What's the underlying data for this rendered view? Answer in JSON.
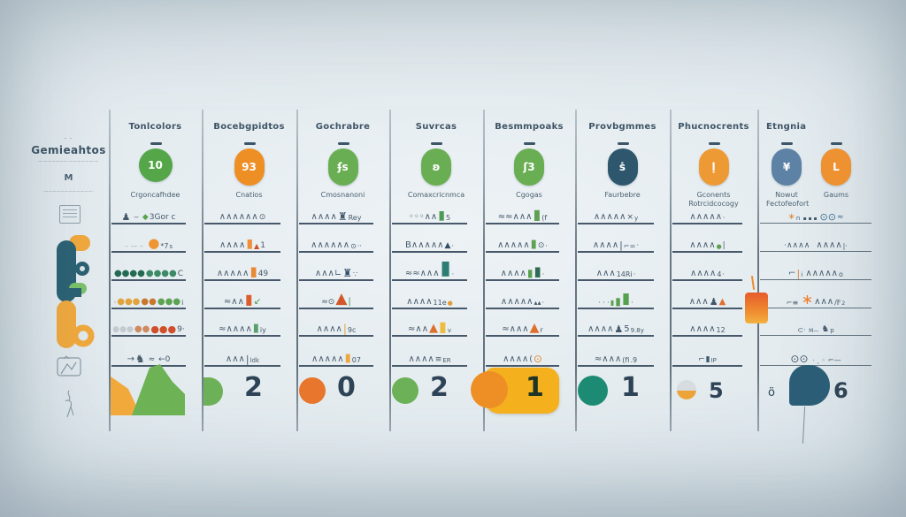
{
  "palette": {
    "slate_text": "#3e5466",
    "row_line": "#46586a",
    "divider": "#8b99a4",
    "green": "#54a648",
    "light_green": "#6cb157",
    "orange": "#ee8f26",
    "deep_orange": "#e8762c",
    "yellow_card": "#f5b01e",
    "navy": "#2e576e",
    "blue_gray": "#5d82a5",
    "teal": "#1d8a73",
    "blob_navy": "#2b5d77",
    "number": "#2e4456"
  },
  "intro": {
    "kicker": "– –",
    "title": "Gemieahtos",
    "caption": "—·——————·——————·—",
    "m_label": "M",
    "m_caption": "·————————————·"
  },
  "columns": [
    {
      "header": "Tonlcolors",
      "icon": {
        "glyph": "10",
        "bg": "#54a648",
        "shape": "circle"
      },
      "subtitle": "Crgoncafhdee",
      "rows": [
        [
          {
            "t": "♟",
            "s": 11
          },
          {
            "t": " ‒ ",
            "s": 9
          },
          {
            "t": "◆",
            "c": "#5aa24b",
            "s": 9
          },
          {
            "t": "3Gor c",
            "s": 9
          }
        ],
        [
          {
            "t": "– — –",
            "c": "#9aa8b2",
            "s": 8
          },
          {
            "t": " "
          },
          {
            "t": "●",
            "c": "#ee9634",
            "s": 15
          },
          {
            "t": "*7",
            "s": 8
          },
          {
            "t": "s",
            "s": 7
          }
        ],
        [
          {
            "t": "●●●●",
            "c": "#226b52",
            "s": 10
          },
          {
            "t": "●●●●",
            "c": "#3c8a66",
            "s": 10
          },
          {
            "t": "C",
            "s": 9
          }
        ],
        [
          {
            "t": "·",
            "s": 8
          },
          {
            "t": "●●●",
            "c": "#e2a33a",
            "s": 10
          },
          {
            "t": "●●",
            "c": "#c8772f",
            "s": 10
          },
          {
            "t": "●●●",
            "c": "#5ca352",
            "s": 10
          },
          {
            "t": "i",
            "s": 8
          }
        ],
        [
          {
            "t": "●●●",
            "c": "#c3cad0",
            "s": 9
          },
          {
            "t": "●●",
            "c": "#cf8a60",
            "s": 10
          },
          {
            "t": "●●●",
            "c": "#d24e2a",
            "s": 11
          },
          {
            "t": "9·",
            "s": 9
          }
        ],
        [
          {
            "t": "→",
            "s": 10
          },
          {
            "t": "♞",
            "s": 12
          },
          {
            "t": " ≈ ",
            "s": 9
          },
          {
            "t": "←0",
            "s": 9
          }
        ]
      ],
      "bottom": {
        "type": "area",
        "left_color": "#f2a93c",
        "right_color": "#6db356"
      }
    },
    {
      "header": "Bocebgpidtos",
      "icon": {
        "glyph": "93",
        "bg": "#ee8f26"
      },
      "subtitle": "Cnatios",
      "rows": [
        [
          {
            "t": "∧∧∧∧∧∧",
            "s": 10
          },
          {
            "t": "⊙",
            "s": 9
          }
        ],
        [
          {
            "t": "∧∧∧∧",
            "s": 10
          },
          {
            "t": "▮",
            "c": "#ee8f3a",
            "s": 14
          },
          {
            "t": "▲",
            "c": "#cf4f28",
            "s": 8
          },
          {
            "t": "1",
            "s": 9
          }
        ],
        [
          {
            "t": "∧∧∧∧∧",
            "s": 10
          },
          {
            "t": "▮",
            "c": "#e98a33",
            "s": 15
          },
          {
            "t": "49",
            "s": 9
          }
        ],
        [
          {
            "t": "≈∧∧",
            "s": 10
          },
          {
            "t": "▮",
            "c": "#da5f2d",
            "s": 16
          },
          {
            "t": "↙",
            "c": "#4c8f50",
            "s": 10
          }
        ],
        [
          {
            "t": "≈∧∧∧∧",
            "s": 10
          },
          {
            "t": "▮",
            "c": "#58a06b",
            "s": 13
          },
          {
            "t": "iy",
            "s": 8
          }
        ],
        [
          {
            "t": "∧∧∧",
            "s": 10
          },
          {
            "t": "|",
            "s": 11
          },
          {
            "t": "ldk",
            "s": 7
          }
        ]
      ],
      "bottom": {
        "type": "bubble",
        "shape": "half",
        "color": "#6cb157",
        "num": "2"
      }
    },
    {
      "header": "Gochrabre",
      "icon": {
        "glyph": "ʄs",
        "bg": "#6aae54"
      },
      "subtitle": "Cmosnanoni",
      "rows": [
        [
          {
            "t": "∧∧∧∧",
            "s": 10
          },
          {
            "t": "♜",
            "s": 12
          },
          {
            "t": "Rey",
            "s": 8
          }
        ],
        [
          {
            "t": "∧∧∧∧∧∧",
            "s": 10
          },
          {
            "t": "⊙",
            "s": 8
          },
          {
            "t": "··",
            "s": 8
          }
        ],
        [
          {
            "t": "∧∧∧∟",
            "s": 10
          },
          {
            "t": "♜",
            "c": "#35506b",
            "s": 12
          },
          {
            "t": "∵",
            "s": 8
          }
        ],
        [
          {
            "t": "≈⊙",
            "s": 9
          },
          {
            "t": "▲",
            "c": "#d2572b",
            "s": 17
          },
          {
            "t": "|",
            "c": "#4c8f50",
            "s": 10
          }
        ],
        [
          {
            "t": "∧∧∧∧",
            "s": 10
          },
          {
            "t": "|",
            "c": "#e0a23c",
            "s": 12
          },
          {
            "t": "9c",
            "s": 8
          }
        ],
        [
          {
            "t": "∧∧∧∧∧",
            "s": 10
          },
          {
            "t": "▮",
            "c": "#eda73f",
            "s": 13
          },
          {
            "t": "07",
            "s": 8
          }
        ]
      ],
      "bottom": {
        "type": "bubble",
        "shape": "circle",
        "color": "#e8762c",
        "num": "0"
      }
    },
    {
      "header": "Suvrcas",
      "icon": {
        "glyph": "ʚ",
        "bg": "#6aae54"
      },
      "subtitle": "Comaxcricnmca",
      "rows": [
        [
          {
            "t": "◦◦◦∧∧",
            "s": 10
          },
          {
            "t": "▮",
            "c": "#4c9a55",
            "s": 14
          },
          {
            "t": "5",
            "s": 8
          }
        ],
        [
          {
            "t": "B∧∧∧∧∧",
            "s": 10
          },
          {
            "t": "▲",
            "c": "#2f4f63",
            "s": 9
          },
          {
            "t": "·",
            "s": 8
          }
        ],
        [
          {
            "t": "≈≈∧∧∧",
            "s": 10
          },
          {
            "t": "▮",
            "c": "#2e7d74",
            "s": 22
          },
          {
            "t": "·",
            "s": 8
          }
        ],
        [
          {
            "t": "∧∧∧∧",
            "s": 10
          },
          {
            "t": "11e",
            "s": 8
          },
          {
            "t": "●",
            "c": "#e39b3a",
            "s": 7
          }
        ],
        [
          {
            "t": "≈∧∧",
            "s": 10
          },
          {
            "t": "▲",
            "c": "#dd6f2c",
            "s": 13
          },
          {
            "t": "▮",
            "c": "#eebc3f",
            "s": 16
          },
          {
            "t": "v",
            "s": 7
          }
        ],
        [
          {
            "t": "∧∧∧∧",
            "s": 10
          },
          {
            "t": "≡",
            "s": 9
          },
          {
            "t": "ER",
            "s": 7
          }
        ]
      ],
      "bottom": {
        "type": "bubble",
        "shape": "circle",
        "color": "#6cb157",
        "num": "2"
      }
    },
    {
      "header": "Besmmpoaks",
      "icon": {
        "glyph": "ʃ3",
        "bg": "#6aae54"
      },
      "subtitle": "Cgogas",
      "rows": [
        [
          {
            "t": "≈≈∧∧∧",
            "s": 10
          },
          {
            "t": "▮",
            "c": "#5fa054",
            "s": 16
          },
          {
            "t": "(f",
            "s": 8
          }
        ],
        [
          {
            "t": "∧∧∧∧∧",
            "s": 10
          },
          {
            "t": "▮",
            "c": "#5fa054",
            "s": 13
          },
          {
            "t": "⊙",
            "s": 9
          },
          {
            "t": "·",
            "s": 8
          }
        ],
        [
          {
            "t": "∧∧∧∧",
            "s": 10
          },
          {
            "t": "▮",
            "c": "#57a04e",
            "s": 12
          },
          {
            "t": "▮",
            "c": "#2f6b54",
            "s": 15
          },
          {
            "t": "·",
            "s": 8
          }
        ],
        [
          {
            "t": "∧∧∧∧∧",
            "s": 10
          },
          {
            "t": "▴▴",
            "s": 8
          },
          {
            "t": "·",
            "s": 8
          }
        ],
        [
          {
            "t": "≈∧∧∧",
            "s": 10
          },
          {
            "t": "▲",
            "c": "#e0702e",
            "s": 14
          },
          {
            "t": "r",
            "s": 8
          }
        ],
        [
          {
            "t": "∧∧∧∧",
            "s": 10
          },
          {
            "t": "(",
            "s": 9
          },
          {
            "t": "⊙",
            "c": "#e08a30",
            "s": 12
          }
        ]
      ],
      "bottom": {
        "type": "bubble",
        "shape": "circle",
        "color": "#ee8f26",
        "num": "1",
        "card": "#f5b01e",
        "num_color": "#1c3526"
      }
    },
    {
      "header": "Provbgmmes",
      "icon": {
        "glyph": "ṡ",
        "bg": "#2e576e"
      },
      "subtitle": "Faurbebre",
      "rows": [
        [
          {
            "t": "∧∧∧∧∧",
            "s": 10
          },
          {
            "t": "×",
            "s": 9
          },
          {
            "t": "y",
            "s": 7
          }
        ],
        [
          {
            "t": "∧∧∧∧",
            "s": 10
          },
          {
            "t": "|",
            "s": 11
          },
          {
            "t": "⌐=",
            "s": 8
          },
          {
            "t": "·",
            "c": "#4c9a55",
            "s": 9
          }
        ],
        [
          {
            "t": "∧∧∧",
            "s": 10
          },
          {
            "t": "14Ri",
            "s": 8
          },
          {
            "t": "·",
            "s": 8
          }
        ],
        [
          {
            "t": "· · ·",
            "s": 8
          },
          {
            "t": "▮",
            "c": "#57a04e",
            "s": 8
          },
          {
            "t": "▮",
            "c": "#57a04e",
            "s": 12
          },
          {
            "t": "▮",
            "c": "#57a04e",
            "s": 17
          },
          {
            "t": "·",
            "s": 8
          }
        ],
        [
          {
            "t": "∧∧∧∧",
            "s": 10
          },
          {
            "t": "♟",
            "s": 11
          },
          {
            "t": "5",
            "s": 10
          },
          {
            "t": "9.8y",
            "s": 7
          }
        ],
        [
          {
            "t": "≈∧∧∧",
            "s": 10
          },
          {
            "t": "(fi",
            "s": 8
          },
          {
            "t": ".9",
            "s": 8
          }
        ]
      ],
      "bottom": {
        "type": "bubble",
        "shape": "circle",
        "color": "#1d8a73",
        "num": "1"
      }
    },
    {
      "header": "Phucnocrents",
      "icon": {
        "glyph": "ḷ",
        "bg": "#ee9a34"
      },
      "subtitle": "Gconents Rotrcidcocogy",
      "rows": [
        [
          {
            "t": "∧∧∧∧∧",
            "s": 10
          },
          {
            "t": "·",
            "s": 8
          }
        ],
        [
          {
            "t": "∧∧∧∧",
            "s": 10
          },
          {
            "t": "●",
            "c": "#5fa054",
            "s": 7
          },
          {
            "t": "|",
            "s": 9
          }
        ],
        [
          {
            "t": "∧∧∧∧",
            "s": 10
          },
          {
            "t": "4",
            "s": 8
          },
          {
            "t": "·",
            "s": 8
          }
        ],
        [
          {
            "t": "∧∧∧",
            "s": 10
          },
          {
            "t": "♟",
            "s": 11
          },
          {
            "t": "▲",
            "c": "#e0702e",
            "s": 10
          }
        ],
        [
          {
            "t": "∧∧∧∧",
            "s": 10
          },
          {
            "t": "12",
            "s": 8
          }
        ],
        [
          {
            "t": "⌐",
            "s": 9
          },
          {
            "t": "▮",
            "c": "#3f5a6e",
            "s": 9
          },
          {
            "t": "IP",
            "s": 7
          }
        ]
      ],
      "bottom": {
        "type": "bubble",
        "shape": "duo",
        "color": "#eca438",
        "num": "5",
        "small": true
      }
    },
    {
      "header": "Etngnia",
      "groups": [
        {
          "glyph": "¥",
          "bg": "#5d82a5",
          "subtitle": "Nowut Fectofeofort"
        },
        {
          "glyph": "L",
          "bg": "#ee9130",
          "subtitle": "Gaums"
        }
      ],
      "rows": [
        [
          {
            "t": "∗",
            "c": "#e0883a",
            "s": 10
          },
          {
            "t": "n ",
            "s": 7
          },
          {
            "t": "▪ ▪ ▪ ",
            "s": 6
          },
          {
            "t": "⊙⊙",
            "c": "#3f6f8f",
            "s": 11
          },
          {
            "t": "≈",
            "c": "#3f6f8f",
            "s": 9
          }
        ],
        [
          {
            "t": "·∧∧∧∧",
            "s": 9
          },
          {
            "t": "  ",
            "s": 8
          },
          {
            "t": "∧∧∧∧",
            "s": 10
          },
          {
            "t": "|·",
            "s": 8
          }
        ],
        [
          {
            "t": "⌐",
            "s": 10
          },
          {
            "t": "|",
            "c": "#e0883a",
            "s": 11
          },
          {
            "t": "i ",
            "s": 7
          },
          {
            "t": "∧∧∧∧∧",
            "s": 10
          },
          {
            "t": "o",
            "s": 8
          }
        ],
        [
          {
            "t": "⌐≡ ",
            "s": 8
          },
          {
            "t": "∗",
            "c": "#ef7f2e",
            "s": 16
          },
          {
            "t": "∧∧∧",
            "s": 10
          },
          {
            "t": "/F",
            "s": 8
          },
          {
            "t": "2",
            "s": 6
          }
        ],
        [
          {
            "t": "⊂· ",
            "s": 8
          },
          {
            "t": "M— ",
            "s": 6
          },
          {
            "t": "♞",
            "s": 10
          },
          {
            "t": "p",
            "s": 7
          }
        ],
        [
          {
            "t": "⊙⊙ ",
            "s": 12
          },
          {
            "t": "· ¸ ◦ ",
            "s": 7
          },
          {
            "t": "⌐—",
            "s": 8
          }
        ]
      ],
      "bottom": {
        "type": "bubble",
        "shape": "blob",
        "color": "#2b5d77",
        "num": "6",
        "prefix": "ö"
      }
    }
  ]
}
